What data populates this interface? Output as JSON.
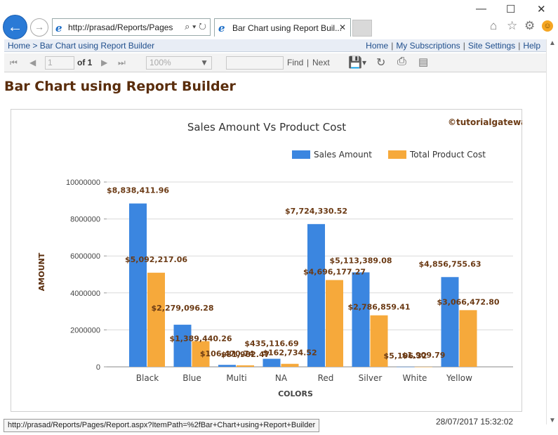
{
  "browser": {
    "url": "http://prasad/Reports/Pages",
    "tab_title": "Bar Chart using Report Buil...",
    "search_glyph": "⌕ ▾ ↻",
    "ie_glyph": "e"
  },
  "nav": {
    "breadcrumb_home": "Home",
    "breadcrumb_sep": ">",
    "breadcrumb_page": "Bar Chart using Report Builder",
    "links": [
      "Home",
      "My Subscriptions",
      "Site Settings",
      "Help"
    ]
  },
  "toolbar": {
    "page_value": "1",
    "page_of": "of 1",
    "zoom": "100%",
    "find_label": "Find",
    "find_sep": "|",
    "next_label": "Next"
  },
  "report": {
    "title": "Bar Chart using Report Builder",
    "watermark": "©tutorialgateway.org",
    "timestamp": "28/07/2017 15:32:02"
  },
  "status_url": "http://prasad/Reports/Pages/Report.aspx?ItemPath=%2fBar+Chart+using+Report+Builder",
  "colors": {
    "sales": "#3b86e0",
    "cost": "#f6a93b",
    "data_label": "#6b3a14",
    "axis_text": "#444444",
    "grid": "#d9d9d9"
  },
  "chart_data": {
    "type": "bar",
    "title": "Sales Amount Vs Product Cost",
    "xlabel": "COLORS",
    "ylabel": "AMOUNT",
    "ylim": [
      0,
      10000000
    ],
    "yticks": [
      0,
      2000000,
      4000000,
      6000000,
      8000000,
      10000000
    ],
    "grid": true,
    "legend": "top-right",
    "categories": [
      "Black",
      "Blue",
      "Multi",
      "NA",
      "Red",
      "Silver",
      "White",
      "Yellow"
    ],
    "series": [
      {
        "name": "Sales Amount",
        "values": [
          8838411.96,
          2279096.28,
          106470.74,
          435116.69,
          7724330.52,
          5113389.08,
          5106.32,
          4856755.63
        ],
        "labels": [
          "$8,838,411.96",
          "$2,279,096.28",
          "$106,470.74",
          "$435,116.69",
          "$7,724,330.52",
          "$5,113,389.08",
          "$5,106.32",
          "$4,856,755.63"
        ]
      },
      {
        "name": "Total Product Cost",
        "values": [
          5092217.06,
          1389440.26,
          81982.47,
          162734.52,
          4696177.27,
          2786859.41,
          1909.79,
          3066472.8
        ],
        "labels": [
          "$5,092,217.06",
          "$1,389,440.26",
          "$81,982.47",
          "$162,734.52",
          "$4,696,177.27",
          "$2,786,859.41",
          "$1,909.79",
          "$3,066,472.80"
        ]
      }
    ]
  }
}
